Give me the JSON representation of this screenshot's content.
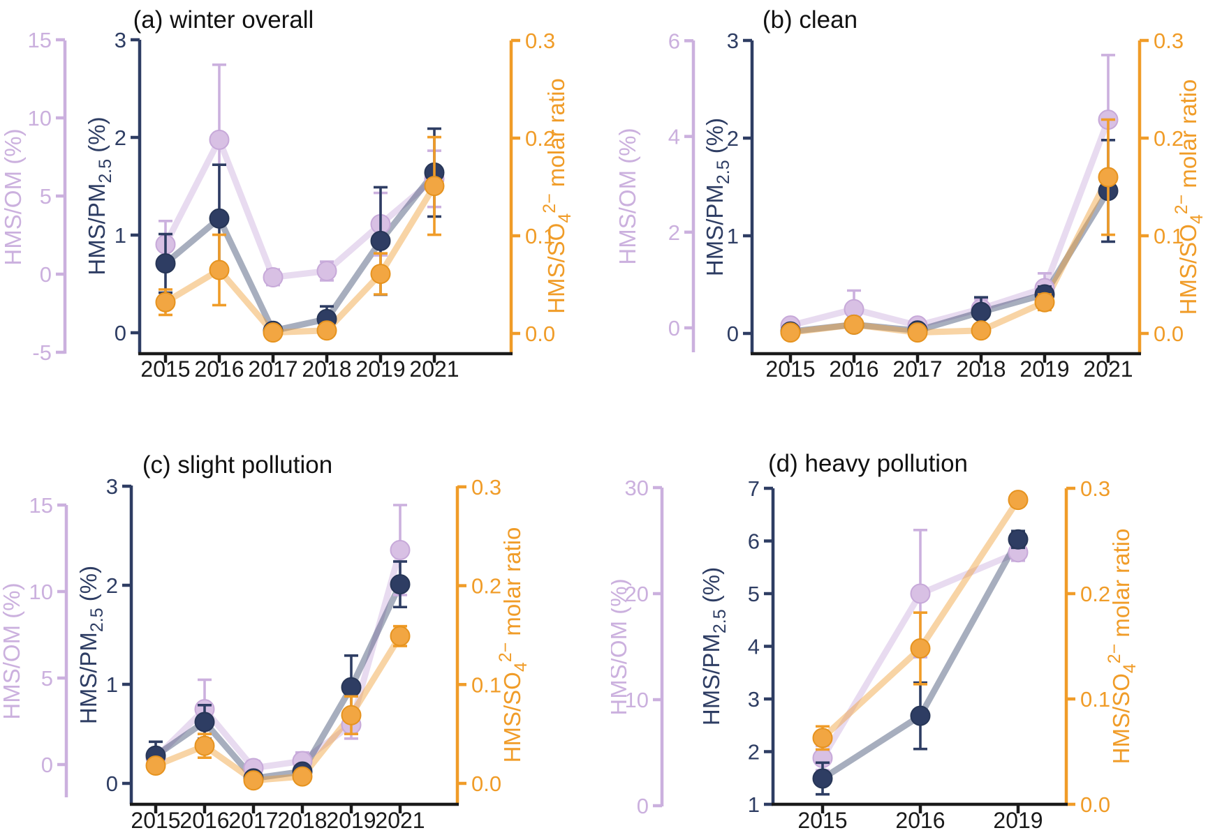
{
  "figure_title": "",
  "chart_data": {
    "type": "line",
    "description": "Four-panel errorbar line chart of HMS ratios by year",
    "colors": {
      "navy_marker": "#2e3d63",
      "navy_edge": "#273657",
      "navy_line": "rgba(46,61,99,0.42)",
      "orange_marker": "#f2a642",
      "orange_edge": "#e6931f",
      "orange_line": "rgba(240,160,55,0.45)",
      "orange_axis": "#f09c28",
      "purple_marker": "#d8c0e4",
      "purple_edge": "#c7a9d9",
      "purple_line": "rgba(214,190,228,0.55)",
      "purple_axis": "#cbb0de",
      "black_axis": "#1a1a1a",
      "title_color": "#111111"
    },
    "axis_label_parts": {
      "om": [
        {
          "t": "HMS/OM (%)"
        }
      ],
      "pm": [
        {
          "t": "HMS/PM"
        },
        {
          "t": "2.5",
          "pos": "sub"
        },
        {
          "t": " (%)"
        }
      ],
      "so4": [
        {
          "t": "HMS/SO"
        },
        {
          "t": "4",
          "pos": "sub"
        },
        {
          "t": "2−",
          "pos": "sup"
        },
        {
          "t": " molar ratio"
        }
      ]
    },
    "panels": [
      {
        "id": "a",
        "title": "(a) winter overall",
        "x_categories": [
          "2015",
          "2016",
          "2017",
          "2018",
          "2019",
          "2021"
        ],
        "axes": {
          "left_outer": {
            "label": "HMS/OM (%)",
            "ticks": [
              15,
              10,
              5,
              0,
              -5
            ],
            "range": [
              -5,
              15
            ]
          },
          "left_inner": {
            "label": "HMS/PM2.5 (%)",
            "ticks": [
              3,
              2,
              1,
              0
            ],
            "range": [
              0,
              3
            ]
          },
          "right": {
            "label": "HMS/SO4 2- molar ratio",
            "ticks": [
              "0.3",
              "0.2",
              "0.1",
              "0.0"
            ],
            "range": [
              0,
              0.3
            ]
          }
        },
        "series": [
          {
            "name": "HMS/OM",
            "axis": "left_outer",
            "values": [
              1.9,
              8.6,
              -0.2,
              0.2,
              3.2,
              6.1
            ],
            "errors": [
              1.5,
              4.8,
              0.5,
              0.6,
              2.0,
              1.8
            ]
          },
          {
            "name": "HMS/PM2.5",
            "axis": "left_inner",
            "values": [
              0.71,
              1.17,
              0.02,
              0.14,
              0.94,
              1.64
            ],
            "errors": [
              0.3,
              0.55,
              0.04,
              0.13,
              0.55,
              0.45
            ]
          },
          {
            "name": "HMS/SO4",
            "axis": "right",
            "values": [
              0.032,
              0.065,
              0.001,
              0.003,
              0.061,
              0.151
            ],
            "errors": [
              0.013,
              0.036,
              0.003,
              0.005,
              0.021,
              0.05
            ]
          }
        ]
      },
      {
        "id": "b",
        "title": "(b) clean",
        "x_categories": [
          "2015",
          "2016",
          "2017",
          "2018",
          "2019",
          "2021"
        ],
        "axes": {
          "left_outer": {
            "label": "HMS/OM (%)",
            "ticks": [
              6,
              4,
              2,
              0
            ],
            "range": [
              0,
              6
            ]
          },
          "left_inner": {
            "label": "HMS/PM2.5 (%)",
            "ticks": [
              3,
              2,
              1,
              0
            ],
            "range": [
              0,
              3
            ]
          },
          "right": {
            "label": "HMS/SO4 2- molar ratio",
            "ticks": [
              "0.3",
              "0.2",
              "0.1",
              "0.0"
            ],
            "range": [
              0,
              0.3
            ]
          }
        },
        "series": [
          {
            "name": "HMS/OM",
            "axis": "left_outer",
            "values": [
              0.05,
              0.39,
              0.05,
              0.4,
              0.83,
              4.35
            ],
            "errors": [
              0.06,
              0.39,
              0.06,
              0.2,
              0.31,
              1.35
            ]
          },
          {
            "name": "HMS/PM2.5",
            "axis": "left_inner",
            "values": [
              0.02,
              0.09,
              0.03,
              0.22,
              0.4,
              1.46
            ],
            "errors": [
              0.02,
              0.04,
              0.02,
              0.15,
              0.08,
              0.52
            ]
          },
          {
            "name": "HMS/SO4",
            "axis": "right",
            "values": [
              0.001,
              0.009,
              0.001,
              0.003,
              0.032,
              0.16
            ],
            "errors": [
              0.002,
              0.004,
              0.002,
              0.004,
              0.008,
              0.059
            ]
          }
        ]
      },
      {
        "id": "c",
        "title": "(c) slight pollution",
        "x_categories": [
          "2015",
          "2016",
          "2017",
          "2018",
          "2019",
          "2021"
        ],
        "axes": {
          "left_outer": {
            "label": "HMS/OM (%)",
            "ticks": [
              15,
              10,
              5,
              0
            ],
            "range": [
              0,
              15
            ]
          },
          "left_inner": {
            "label": "HMS/PM2.5 (%)",
            "ticks": [
              3,
              2,
              1,
              0
            ],
            "range": [
              0,
              3
            ]
          },
          "right": {
            "label": "HMS/SO4 2- molar ratio",
            "ticks": [
              "0.3",
              "0.2",
              "0.1",
              "0.0"
            ],
            "range": [
              0,
              0.3
            ]
          }
        },
        "series": [
          {
            "name": "HMS/OM",
            "axis": "left_outer",
            "values": [
              0.4,
              3.2,
              -0.2,
              0.2,
              2.3,
              12.4
            ],
            "errors": [
              0.5,
              1.7,
              0.4,
              0.5,
              0.8,
              2.6
            ]
          },
          {
            "name": "HMS/PM2.5",
            "axis": "left_inner",
            "values": [
              0.28,
              0.62,
              0.05,
              0.12,
              0.97,
              2.01
            ],
            "errors": [
              0.14,
              0.17,
              0.05,
              0.06,
              0.32,
              0.23
            ]
          },
          {
            "name": "HMS/SO4",
            "axis": "right",
            "values": [
              0.018,
              0.038,
              0.003,
              0.007,
              0.069,
              0.149
            ],
            "errors": [
              0.006,
              0.012,
              0.003,
              0.004,
              0.019,
              0.01
            ]
          }
        ]
      },
      {
        "id": "d",
        "title": "(d) heavy pollution",
        "x_categories": [
          "2015",
          "2016",
          "2019"
        ],
        "axes": {
          "left_outer": {
            "label": "HMS/OM (%)",
            "ticks": [
              30,
              20,
              10,
              0
            ],
            "range": [
              0,
              30
            ]
          },
          "left_inner": {
            "label": "HMS/PM2.5 (%)",
            "ticks": [
              7,
              6,
              5,
              4,
              3,
              2,
              1
            ],
            "range": [
              1,
              7
            ]
          },
          "right": {
            "label": "HMS/SO4 2- molar ratio",
            "ticks": [
              "0.3",
              "0.2",
              "0.1",
              "0.0"
            ],
            "range": [
              0,
              0.3
            ]
          }
        },
        "series": [
          {
            "name": "HMS/OM",
            "axis": "left_outer",
            "values": [
              4.5,
              20.0,
              23.9
            ],
            "errors": [
              1.15,
              6.0,
              0.8
            ]
          },
          {
            "name": "HMS/PM2.5",
            "axis": "left_inner",
            "values": [
              1.49,
              2.68,
              6.03
            ],
            "errors": [
              0.3,
              0.63,
              0.16
            ]
          },
          {
            "name": "HMS/SO4",
            "axis": "right",
            "values": [
              0.063,
              0.148,
              0.289
            ],
            "errors": [
              0.011,
              0.034,
              0.006
            ]
          }
        ]
      }
    ]
  }
}
